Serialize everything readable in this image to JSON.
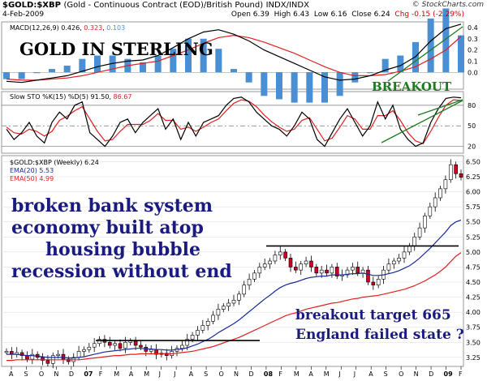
{
  "header": {
    "symbol": "$GOLD:$XBP",
    "description": "(Gold - Continuous Contract (EOD)/British Pound)",
    "exchange": "INDX/INDX",
    "date": "4-Feb-2009",
    "brand": "© StockCharts.com",
    "open": "Open 6.39",
    "high": "High 6.43",
    "low": "Low 6.16",
    "close": "Close 6.24",
    "chg": "Chg -0.15 (-2.29%)"
  },
  "colors": {
    "price_up": "#000000",
    "price_down": "#cc0022",
    "ema20": "#1a2a9a",
    "ema50": "#e02020",
    "macd_line": "#000000",
    "macd_signal": "#e02020",
    "macd_hist": "#4a8fd4",
    "sto_k": "#000000",
    "sto_d": "#e02020",
    "annotation_blue": "#1a1a80",
    "annotation_green": "#1f7a1f"
  },
  "annotations": {
    "title": "GOLD IN STERLING",
    "breakout": "BREAKOUT",
    "lines": [
      "broken bank system",
      "economy built atop",
      "housing bubble",
      "recession without end"
    ],
    "target": "breakout target 665",
    "failed": "England failed state ?"
  },
  "chart_data": [
    {
      "type": "bar",
      "panel": "MACD",
      "legend": "MACD(12,26,9) 0.426, 0.323, 0.103",
      "legend_parts": [
        "MACD(12,26,9) 0.426, ",
        "0.323",
        ", ",
        "0.103"
      ],
      "ylim": [
        -0.15,
        0.45
      ],
      "ticks": [
        0.0,
        0.1,
        0.2,
        0.3,
        0.4
      ],
      "series": [
        {
          "name": "MACD",
          "values": [
            -0.08,
            -0.09,
            -0.07,
            -0.05,
            -0.03,
            0.01,
            0.05,
            0.08,
            0.1,
            0.11,
            0.15,
            0.22,
            0.3,
            0.36,
            0.38,
            0.34,
            0.28,
            0.2,
            0.14,
            0.08,
            0.02,
            -0.04,
            -0.07,
            -0.06,
            -0.03,
            0.02,
            0.06,
            0.14,
            0.28,
            0.39,
            0.43
          ]
        },
        {
          "name": "signal",
          "values": [
            -0.06,
            -0.07,
            -0.07,
            -0.06,
            -0.05,
            -0.03,
            0.0,
            0.03,
            0.06,
            0.08,
            0.1,
            0.15,
            0.2,
            0.26,
            0.31,
            0.33,
            0.31,
            0.27,
            0.22,
            0.17,
            0.11,
            0.05,
            0.0,
            -0.03,
            -0.03,
            -0.02,
            0.01,
            0.05,
            0.12,
            0.2,
            0.32
          ]
        }
      ]
    },
    {
      "type": "line",
      "panel": "Slow STO",
      "legend": "Slow STO %K(15) %D(5) 91.50, 86.67",
      "legend_parts": [
        "Slow STO %K(15) %D(5) 91.50, ",
        "86.67"
      ],
      "ylim": [
        10,
        100
      ],
      "ticks": [
        20,
        50,
        80
      ],
      "series": [
        {
          "name": "%K",
          "values": [
            45,
            30,
            40,
            55,
            35,
            25,
            55,
            70,
            60,
            80,
            85,
            40,
            30,
            20,
            35,
            55,
            60,
            40,
            55,
            65,
            75,
            45,
            60,
            30,
            55,
            35,
            55,
            60,
            65,
            80,
            90,
            92,
            85,
            70,
            60,
            50,
            45,
            35,
            50,
            70,
            60,
            30,
            20,
            40,
            60,
            75,
            55,
            35,
            50,
            85,
            60,
            80,
            45,
            30,
            20,
            25,
            55,
            75,
            90,
            92,
            91
          ]
        },
        {
          "name": "%D",
          "values": [
            48,
            40,
            38,
            45,
            42,
            35,
            42,
            58,
            64,
            72,
            78,
            60,
            42,
            28,
            30,
            42,
            52,
            52,
            52,
            58,
            68,
            58,
            58,
            45,
            48,
            42,
            48,
            55,
            60,
            72,
            83,
            88,
            86,
            78,
            66,
            56,
            48,
            42,
            45,
            58,
            62,
            45,
            28,
            32,
            48,
            65,
            60,
            45,
            45,
            65,
            65,
            72,
            58,
            40,
            28,
            24,
            42,
            62,
            80,
            88,
            87
          ]
        }
      ]
    },
    {
      "type": "candlestick",
      "panel": "Price",
      "title": "$GOLD:$XBP (Weekly) 6.24",
      "legend": [
        "$GOLD:$XBP (Weekly) 6.24",
        "EMA(20) 5.53",
        "EMA(50) 4.99"
      ],
      "ylim": [
        3.1,
        6.6
      ],
      "ticks": [
        3.25,
        3.5,
        3.75,
        4.0,
        4.25,
        4.5,
        4.75,
        5.0,
        5.25,
        5.5,
        5.75,
        6.0,
        6.25,
        6.5
      ],
      "x_labels": [
        "A",
        "S",
        "O",
        "N",
        "D",
        "07",
        "F",
        "M",
        "A",
        "M",
        "J",
        "J",
        "A",
        "S",
        "O",
        "N",
        "D",
        "08",
        "F",
        "M",
        "A",
        "M",
        "J",
        "J",
        "A",
        "S",
        "O",
        "N",
        "D",
        "09",
        "F"
      ],
      "close": [
        3.35,
        3.3,
        3.33,
        3.28,
        3.22,
        3.3,
        3.25,
        3.2,
        3.15,
        3.28,
        3.3,
        3.22,
        3.18,
        3.25,
        3.35,
        3.38,
        3.42,
        3.48,
        3.55,
        3.5,
        3.45,
        3.48,
        3.4,
        3.5,
        3.52,
        3.45,
        3.42,
        3.35,
        3.38,
        3.3,
        3.32,
        3.28,
        3.35,
        3.4,
        3.45,
        3.55,
        3.62,
        3.7,
        3.78,
        3.85,
        3.95,
        4.05,
        4.1,
        4.15,
        4.2,
        4.3,
        4.45,
        4.55,
        4.65,
        4.75,
        4.8,
        4.85,
        4.95,
        5.0,
        4.9,
        4.75,
        4.7,
        4.8,
        4.85,
        4.75,
        4.65,
        4.7,
        4.65,
        4.75,
        4.6,
        4.62,
        4.7,
        4.75,
        4.65,
        4.7,
        4.5,
        4.45,
        4.55,
        4.7,
        4.8,
        4.85,
        4.9,
        5.0,
        5.1,
        5.25,
        5.4,
        5.6,
        5.75,
        5.9,
        6.05,
        6.2,
        6.45,
        6.3,
        6.24
      ],
      "ema20": [
        3.3,
        3.3,
        3.3,
        3.29,
        3.28,
        3.28,
        3.27,
        3.26,
        3.25,
        3.25,
        3.25,
        3.25,
        3.24,
        3.24,
        3.25,
        3.26,
        3.28,
        3.3,
        3.32,
        3.34,
        3.35,
        3.36,
        3.37,
        3.38,
        3.39,
        3.4,
        3.4,
        3.39,
        3.39,
        3.38,
        3.38,
        3.37,
        3.37,
        3.38,
        3.39,
        3.41,
        3.44,
        3.47,
        3.51,
        3.55,
        3.6,
        3.66,
        3.71,
        3.76,
        3.81,
        3.87,
        3.94,
        4.01,
        4.08,
        4.15,
        4.22,
        4.28,
        4.35,
        4.41,
        4.45,
        4.48,
        4.5,
        4.53,
        4.56,
        4.58,
        4.59,
        4.6,
        4.6,
        4.62,
        4.62,
        4.62,
        4.63,
        4.64,
        4.64,
        4.65,
        4.63,
        4.61,
        4.61,
        4.62,
        4.64,
        4.66,
        4.69,
        4.73,
        4.77,
        4.83,
        4.9,
        4.98,
        5.06,
        5.15,
        5.24,
        5.33,
        5.44,
        5.5,
        5.53
      ],
      "ema50": [
        3.2,
        3.2,
        3.21,
        3.21,
        3.21,
        3.21,
        3.21,
        3.21,
        3.21,
        3.21,
        3.21,
        3.21,
        3.21,
        3.21,
        3.21,
        3.22,
        3.23,
        3.24,
        3.25,
        3.26,
        3.27,
        3.28,
        3.28,
        3.29,
        3.3,
        3.3,
        3.31,
        3.31,
        3.31,
        3.31,
        3.31,
        3.31,
        3.31,
        3.32,
        3.33,
        3.34,
        3.35,
        3.37,
        3.39,
        3.41,
        3.43,
        3.46,
        3.49,
        3.52,
        3.55,
        3.58,
        3.62,
        3.66,
        3.7,
        3.74,
        3.78,
        3.82,
        3.86,
        3.9,
        3.94,
        3.97,
        3.99,
        4.02,
        4.05,
        4.07,
        4.09,
        4.11,
        4.13,
        4.15,
        4.16,
        4.18,
        4.2,
        4.22,
        4.23,
        4.25,
        4.26,
        4.27,
        4.28,
        4.3,
        4.32,
        4.34,
        4.36,
        4.38,
        4.41,
        4.44,
        4.48,
        4.52,
        4.57,
        4.62,
        4.68,
        4.75,
        4.84,
        4.93,
        4.99
      ]
    }
  ]
}
